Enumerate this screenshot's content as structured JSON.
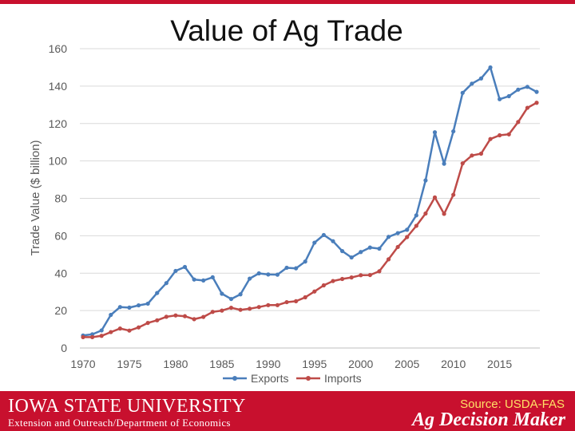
{
  "colors": {
    "accent": "#c8102e",
    "exports": "#4a7ebb",
    "imports": "#be4b48",
    "source_text": "#ffe066"
  },
  "page": {
    "title": "Value of Ag Trade"
  },
  "footer": {
    "university": "IOWA STATE UNIVERSITY",
    "department": "Extension and Outreach/Department of Economics",
    "source": "Source: USDA-FAS",
    "brand": "Ag Decision Maker"
  },
  "chart_data": {
    "type": "line",
    "title": "Value of Ag Trade",
    "xlabel": "",
    "ylabel": "Trade Value ($ billion)",
    "xlim": [
      1970,
      2019
    ],
    "ylim": [
      0,
      160
    ],
    "xticks": [
      1970,
      1975,
      1980,
      1985,
      1990,
      1995,
      2000,
      2005,
      2010,
      2015
    ],
    "yticks": [
      0,
      20,
      40,
      60,
      80,
      100,
      120,
      140,
      160
    ],
    "grid": "horizontal",
    "legend_position": "bottom",
    "x": [
      1970,
      1971,
      1972,
      1973,
      1974,
      1975,
      1976,
      1977,
      1978,
      1979,
      1980,
      1981,
      1982,
      1983,
      1984,
      1985,
      1986,
      1987,
      1988,
      1989,
      1990,
      1991,
      1992,
      1993,
      1994,
      1995,
      1996,
      1997,
      1998,
      1999,
      2000,
      2001,
      2002,
      2003,
      2004,
      2005,
      2006,
      2007,
      2008,
      2009,
      2010,
      2011,
      2012,
      2013,
      2014,
      2015,
      2016,
      2017,
      2018,
      2019
    ],
    "series": [
      {
        "name": "Exports",
        "color": "#4a7ebb",
        "values": [
          6.7,
          7.3,
          9.4,
          17.7,
          21.9,
          21.6,
          22.8,
          23.7,
          29.4,
          34.7,
          41.2,
          43.3,
          36.6,
          36.1,
          37.8,
          29.0,
          26.2,
          28.7,
          37.1,
          39.9,
          39.3,
          39.2,
          42.9,
          42.6,
          46.2,
          56.3,
          60.4,
          57.1,
          51.8,
          48.4,
          51.3,
          53.7,
          53.1,
          59.4,
          61.4,
          63.2,
          70.9,
          89.6,
          115.3,
          98.5,
          115.8,
          136.4,
          141.3,
          144.1,
          150.0,
          133.0,
          134.6,
          138.1,
          139.6,
          136.9
        ]
      },
      {
        "name": "Imports",
        "color": "#be4b48",
        "values": [
          5.8,
          5.8,
          6.5,
          8.5,
          10.4,
          9.3,
          11.0,
          13.4,
          14.8,
          16.7,
          17.4,
          17.0,
          15.4,
          16.6,
          19.3,
          20.0,
          21.5,
          20.4,
          21.0,
          21.9,
          22.9,
          22.9,
          24.5,
          25.0,
          27.1,
          30.2,
          33.5,
          35.8,
          36.9,
          37.7,
          38.9,
          39.0,
          41.0,
          47.4,
          54.0,
          59.3,
          65.3,
          71.9,
          80.5,
          71.7,
          81.9,
          98.7,
          102.9,
          103.9,
          111.7,
          113.7,
          114.2,
          120.8,
          128.4,
          131.1
        ]
      }
    ]
  }
}
